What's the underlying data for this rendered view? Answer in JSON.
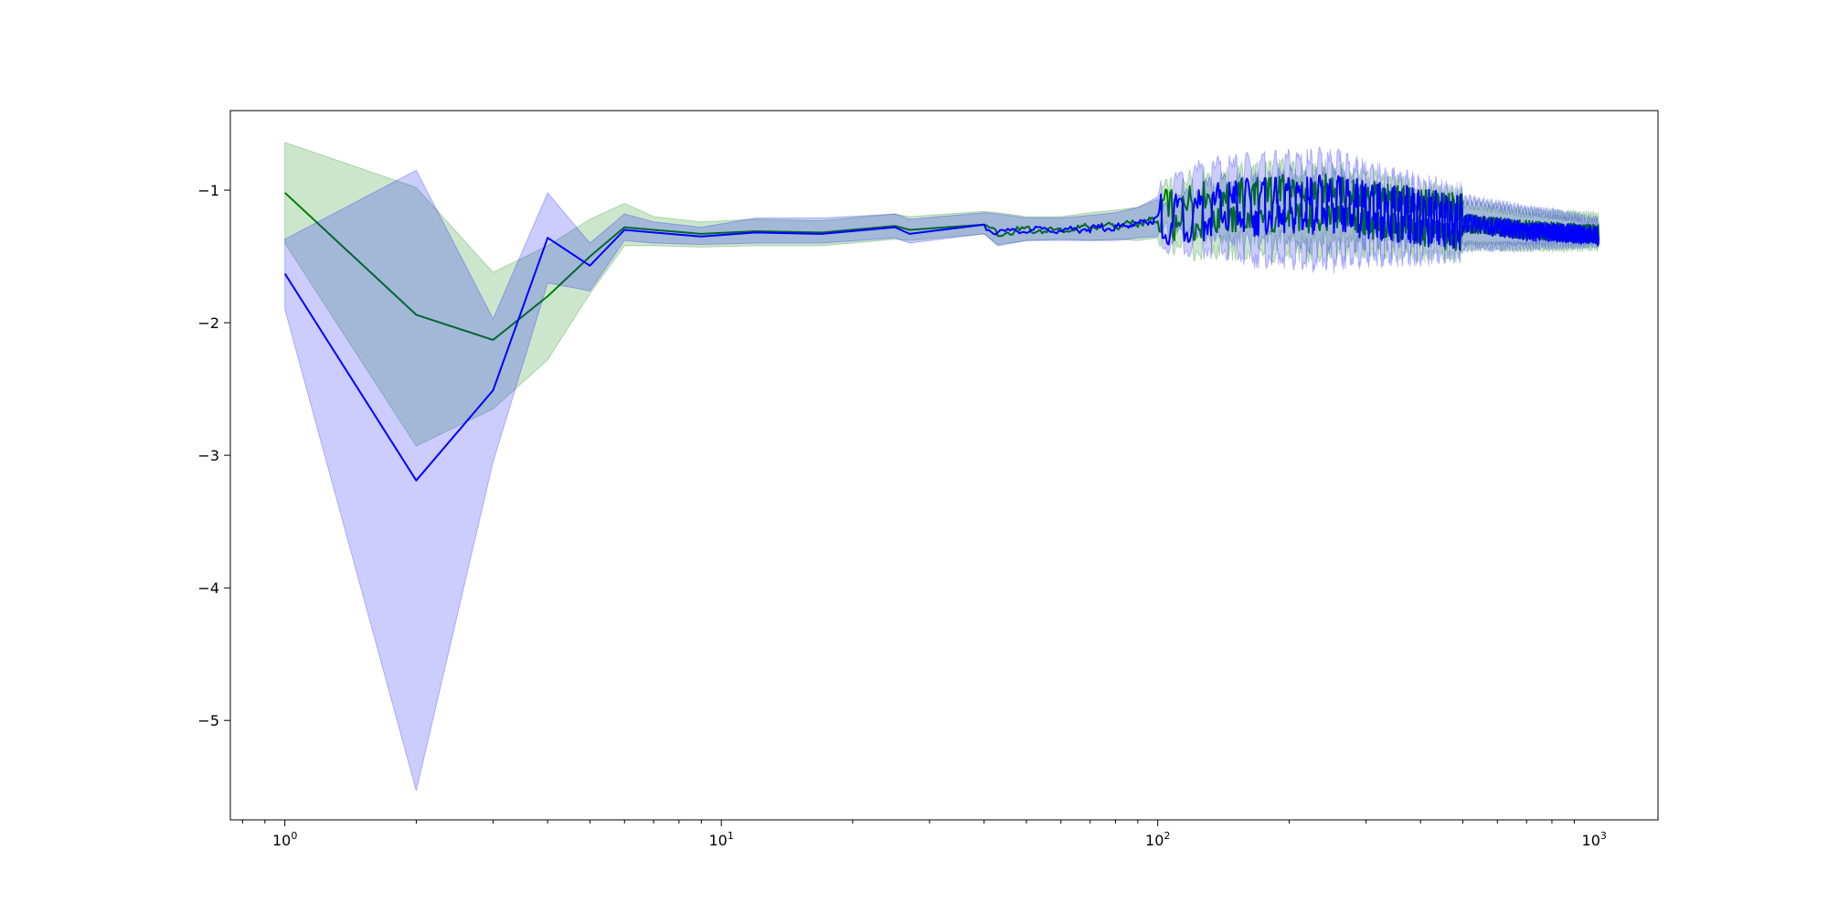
{
  "chart_data": {
    "type": "line",
    "title": "",
    "xlabel": "",
    "ylabel": "",
    "xscale": "log",
    "xlim": [
      0.75,
      1400
    ],
    "ylim": [
      -5.75,
      -0.4
    ],
    "grid": false,
    "legend": "none",
    "x_ticks": [
      {
        "value": 1,
        "base": "10",
        "exp": "0"
      },
      {
        "value": 10,
        "base": "10",
        "exp": "1"
      },
      {
        "value": 100,
        "base": "10",
        "exp": "2"
      },
      {
        "value": 1000,
        "base": "10",
        "exp": "3"
      }
    ],
    "y_ticks": [
      {
        "value": -1,
        "label": "−1"
      },
      {
        "value": -2,
        "label": "−2"
      },
      {
        "value": -3,
        "label": "−3"
      },
      {
        "value": -4,
        "label": "−4"
      },
      {
        "value": -5,
        "label": "−5"
      }
    ],
    "series": [
      {
        "color": "#008000",
        "band_color": "#008000",
        "band_opacity": 0.2,
        "x": [
          1,
          2,
          3,
          4,
          5,
          6,
          7,
          9,
          12,
          17,
          25,
          27,
          40,
          43,
          50,
          60,
          70,
          80,
          90,
          100,
          120,
          150,
          200,
          250,
          300,
          400,
          500,
          700,
          1000,
          1024
        ],
        "mean": [
          -1.02,
          -1.94,
          -2.13,
          -1.8,
          -1.5,
          -1.28,
          -1.3,
          -1.33,
          -1.31,
          -1.32,
          -1.27,
          -1.3,
          -1.26,
          -1.32,
          -1.3,
          -1.3,
          -1.28,
          -1.27,
          -1.25,
          -1.22,
          -1.16,
          -1.12,
          -1.1,
          -1.1,
          -1.15,
          -1.2,
          -1.25,
          -1.3,
          -1.33,
          -1.33
        ],
        "lower": [
          -1.4,
          -2.93,
          -2.65,
          -2.28,
          -1.78,
          -1.42,
          -1.42,
          -1.43,
          -1.42,
          -1.42,
          -1.37,
          -1.38,
          -1.33,
          -1.41,
          -1.38,
          -1.37,
          -1.38,
          -1.37,
          -1.38,
          -1.36,
          -1.4,
          -1.42,
          -1.42,
          -1.42,
          -1.4,
          -1.42,
          -1.42,
          -1.43,
          -1.42,
          -1.42
        ],
        "upper": [
          -0.64,
          -0.98,
          -1.62,
          -1.42,
          -1.22,
          -1.1,
          -1.2,
          -1.24,
          -1.22,
          -1.23,
          -1.18,
          -1.2,
          -1.16,
          -1.17,
          -1.2,
          -1.2,
          -1.17,
          -1.15,
          -1.13,
          -1.07,
          -0.95,
          -0.92,
          -0.88,
          -0.9,
          -0.95,
          -1.05,
          -1.1,
          -1.17,
          -1.2,
          -1.21
        ]
      },
      {
        "color": "#0000ff",
        "band_color": "#0000ff",
        "band_opacity": 0.2,
        "x": [
          1,
          2,
          3,
          4,
          5,
          6,
          7,
          9,
          12,
          17,
          25,
          27,
          40,
          43,
          50,
          60,
          70,
          80,
          90,
          100,
          120,
          150,
          200,
          250,
          300,
          400,
          500,
          700,
          1000,
          1024
        ],
        "mean": [
          -1.63,
          -3.19,
          -2.51,
          -1.36,
          -1.57,
          -1.3,
          -1.32,
          -1.35,
          -1.32,
          -1.33,
          -1.28,
          -1.33,
          -1.26,
          -1.33,
          -1.3,
          -1.3,
          -1.29,
          -1.28,
          -1.25,
          -1.22,
          -1.18,
          -1.13,
          -1.12,
          -1.1,
          -1.15,
          -1.2,
          -1.25,
          -1.31,
          -1.34,
          -1.35
        ],
        "lower": [
          -1.9,
          -5.53,
          -3.05,
          -1.7,
          -1.76,
          -1.38,
          -1.4,
          -1.41,
          -1.4,
          -1.4,
          -1.36,
          -1.4,
          -1.33,
          -1.42,
          -1.38,
          -1.38,
          -1.38,
          -1.38,
          -1.36,
          -1.35,
          -1.38,
          -1.45,
          -1.48,
          -1.5,
          -1.46,
          -1.45,
          -1.43,
          -1.42,
          -1.4,
          -1.4
        ],
        "upper": [
          -1.37,
          -0.85,
          -1.97,
          -1.02,
          -1.4,
          -1.18,
          -1.24,
          -1.28,
          -1.21,
          -1.21,
          -1.18,
          -1.22,
          -1.17,
          -1.18,
          -1.21,
          -1.21,
          -1.19,
          -1.17,
          -1.13,
          -1.05,
          -0.88,
          -0.85,
          -0.82,
          -0.8,
          -0.9,
          -1.0,
          -1.07,
          -1.15,
          -1.23,
          -1.24
        ]
      }
    ]
  }
}
